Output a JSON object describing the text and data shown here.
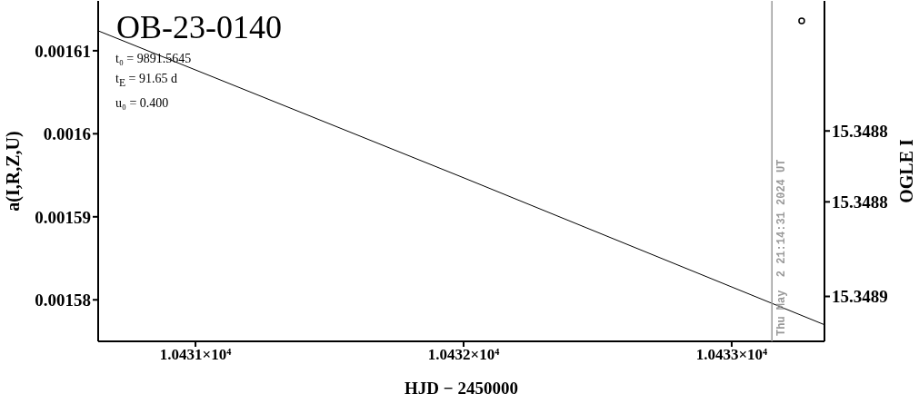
{
  "chart_data": {
    "type": "line",
    "title": "OB-23-0140",
    "annotations": [
      "t₀ = 9891.5645",
      "t$_{E}$ = 91.65 d",
      "u₀ = 0.400",
      "Thu May  2 21:14:31 2024 UT"
    ],
    "xlabel": "HJD − 2450000",
    "ylabel": "a(I,R,Z,U)",
    "y2label": "OGLE I",
    "xlim": [
      10430.637,
      10433.346
    ],
    "xticks": [
      {
        "value": 10431,
        "label": "1.0431×10⁴"
      },
      {
        "value": 10432,
        "label": "1.0432×10⁴"
      },
      {
        "value": 10433,
        "label": "1.0433×10⁴"
      }
    ],
    "ylim": [
      0.001575,
      0.001616
    ],
    "yticks": [
      0.00158,
      0.00159,
      0.0016,
      0.00161
    ],
    "y2lim": [
      15.348869,
      15.348725
    ],
    "y2ticks": [
      {
        "value": 15.34878,
        "label": "15.3488"
      },
      {
        "value": 15.34881,
        "label": "15.3488"
      },
      {
        "value": 15.34885,
        "label": "15.3489"
      }
    ],
    "series": [
      {
        "color": "#000000",
        "x": [
          10430.637,
          10432,
          10433.346
        ],
        "values": [
          0.0016124,
          0.0015947,
          0.001577
        ]
      },
      {
        "type": "scatter",
        "color": "#000000",
        "marker": "circle",
        "x": [
          10433.261
        ],
        "values": [
          0.0016136
        ]
      }
    ],
    "ref_lines": [
      {
        "axis": "x",
        "value": 10433.15,
        "color": "#999999"
      }
    ]
  }
}
